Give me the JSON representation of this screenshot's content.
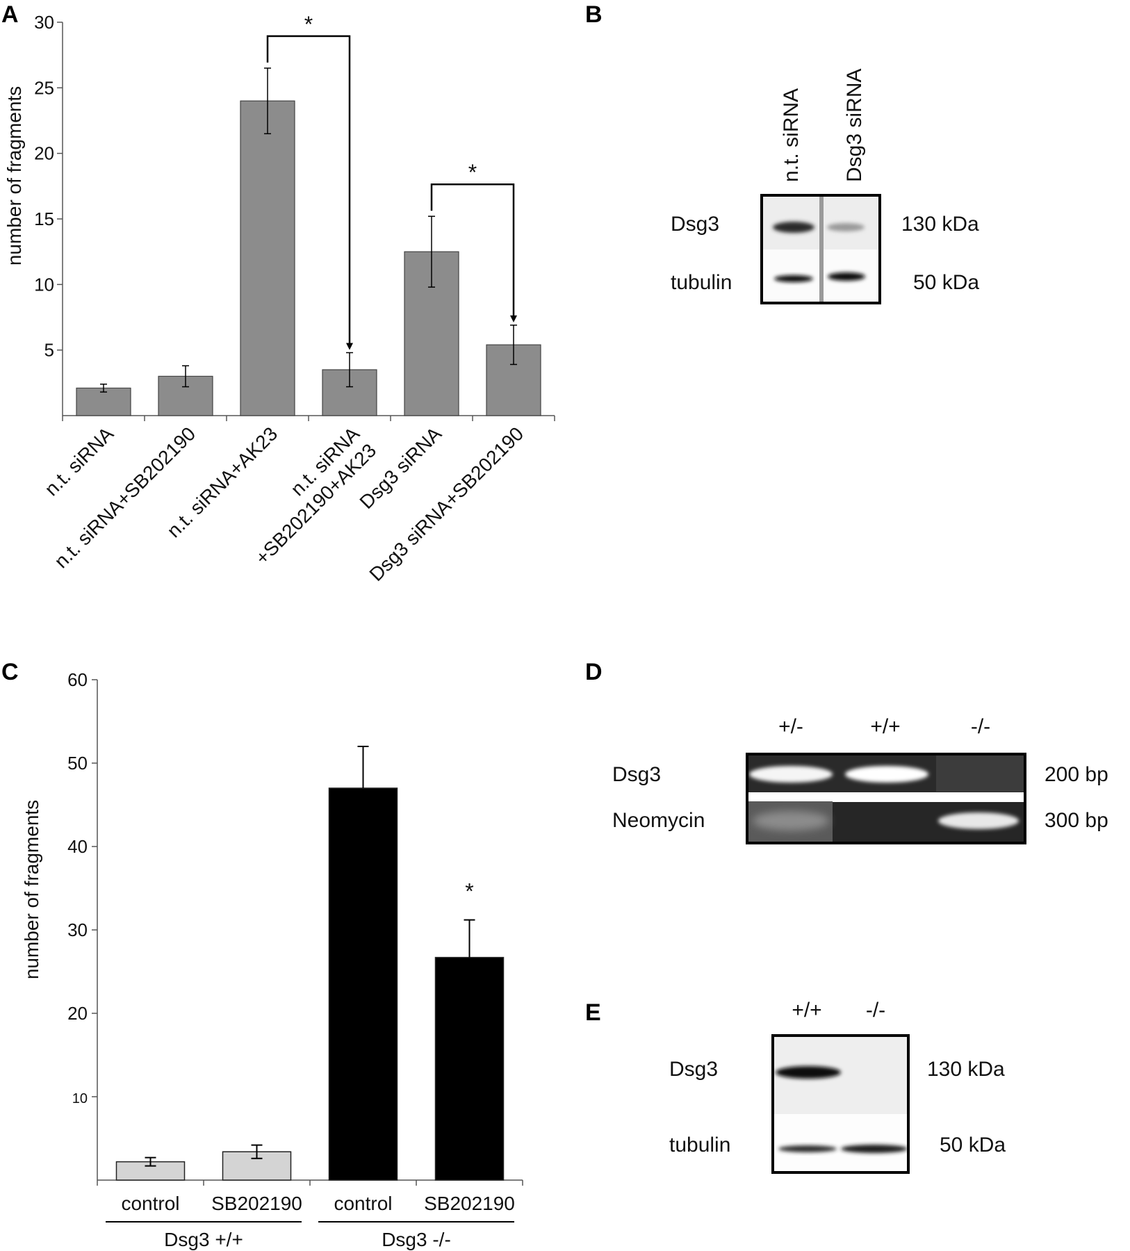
{
  "figure": {
    "panels": {
      "A": {
        "letter": "A"
      },
      "B": {
        "letter": "B",
        "lanes": [
          "n.t. siRNA",
          "Dsg3 siRNA"
        ],
        "rows": [
          {
            "protein": "Dsg3",
            "size": "130 kDa"
          },
          {
            "protein": "tubulin",
            "size": "50 kDa"
          }
        ]
      },
      "C": {
        "letter": "C"
      },
      "D": {
        "letter": "D",
        "lanes": [
          "+/-",
          "+/+",
          "-/-"
        ],
        "rows": [
          {
            "gene": "Dsg3",
            "size": "200 bp"
          },
          {
            "gene": "Neomycin",
            "size": "300 bp"
          }
        ]
      },
      "E": {
        "letter": "E",
        "lanes": [
          "+/+",
          "-/-"
        ],
        "rows": [
          {
            "protein": "Dsg3",
            "size": "130 kDa"
          },
          {
            "protein": "tubulin",
            "size": "50 kDa"
          }
        ]
      }
    }
  },
  "chart_data": [
    {
      "panel": "A",
      "type": "bar",
      "ylabel": "number of fragments",
      "ylim": [
        0,
        30
      ],
      "yticks": [
        5,
        10,
        15,
        20,
        25,
        30
      ],
      "categories": [
        [
          "n.t. siRNA"
        ],
        [
          "n.t. siRNA+SB202190"
        ],
        [
          "n.t. siRNA+AK23"
        ],
        [
          "n.t. siRNA",
          "+SB202190+AK23"
        ],
        [
          "Dsg3 siRNA"
        ],
        [
          "Dsg3 siRNA+SB202190"
        ]
      ],
      "values": [
        2.1,
        3.0,
        24.0,
        3.5,
        12.5,
        5.4
      ],
      "errors": [
        0.3,
        0.8,
        2.5,
        1.3,
        2.7,
        1.5
      ],
      "bar_color": "#8c8c8c",
      "significance": [
        {
          "from": 2,
          "to": 3,
          "label": "*"
        },
        {
          "from": 4,
          "to": 5,
          "label": "*"
        }
      ]
    },
    {
      "panel": "C",
      "type": "bar",
      "ylabel": "number of fragments",
      "ylim": [
        0,
        60
      ],
      "yticks": [
        10,
        20,
        30,
        40,
        50,
        60
      ],
      "categories": [
        "control",
        "SB202190",
        "control",
        "SB202190"
      ],
      "groups": [
        {
          "label": "Dsg3 +/+",
          "members": [
            0,
            1
          ]
        },
        {
          "label": "Dsg3 -/-",
          "members": [
            2,
            3
          ]
        }
      ],
      "values": [
        2.2,
        3.4,
        47.0,
        26.7
      ],
      "errors": [
        0.5,
        0.8,
        5.0,
        4.5
      ],
      "bar_colors": [
        "#d4d4d4",
        "#d4d4d4",
        "#000000",
        "#000000"
      ],
      "significance": [
        {
          "bar": 3,
          "label": "*"
        }
      ]
    }
  ]
}
